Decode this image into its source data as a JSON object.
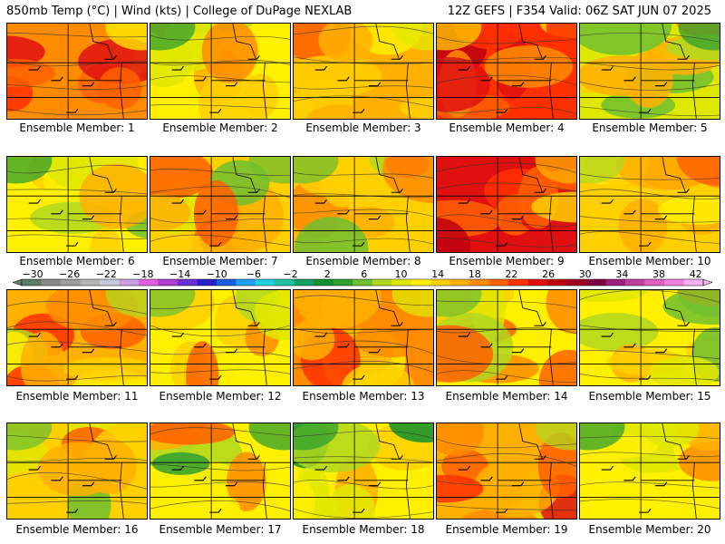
{
  "header": {
    "left_title": "850mb Temp (°C) | Wind (kts) | College of DuPage NEXLAB",
    "right_title": "12Z GEFS | F354 Valid: 06Z SAT JUN 07 2025"
  },
  "members": [
    {
      "caption": "Ensemble Member: 1",
      "warmth": 0.68
    },
    {
      "caption": "Ensemble Member: 2",
      "warmth": 0.4
    },
    {
      "caption": "Ensemble Member: 3",
      "warmth": 0.6
    },
    {
      "caption": "Ensemble Member: 4",
      "warmth": 0.78
    },
    {
      "caption": "Ensemble Member: 5",
      "warmth": 0.38
    },
    {
      "caption": "Ensemble Member: 6",
      "warmth": 0.42
    },
    {
      "caption": "Ensemble Member: 7",
      "warmth": 0.48
    },
    {
      "caption": "Ensemble Member: 8",
      "warmth": 0.5
    },
    {
      "caption": "Ensemble Member: 9",
      "warmth": 0.88
    },
    {
      "caption": "Ensemble Member: 10",
      "warmth": 0.52
    },
    {
      "caption": "Ensemble Member: 11",
      "warmth": 0.58
    },
    {
      "caption": "Ensemble Member: 12",
      "warmth": 0.44
    },
    {
      "caption": "Ensemble Member: 13",
      "warmth": 0.62
    },
    {
      "caption": "Ensemble Member: 14",
      "warmth": 0.46
    },
    {
      "caption": "Ensemble Member: 15",
      "warmth": 0.45
    },
    {
      "caption": "Ensemble Member: 16",
      "warmth": 0.47
    },
    {
      "caption": "Ensemble Member: 17",
      "warmth": 0.43
    },
    {
      "caption": "Ensemble Member: 18",
      "warmth": 0.4
    },
    {
      "caption": "Ensemble Member: 19",
      "warmth": 0.56
    },
    {
      "caption": "Ensemble Member: 20",
      "warmth": 0.42
    }
  ],
  "colorbar": {
    "labels": [
      "−30",
      "−26",
      "−22",
      "−18",
      "−14",
      "−10",
      "−6",
      "−2",
      "2",
      "6",
      "10",
      "14",
      "18",
      "22",
      "26",
      "30",
      "34",
      "38",
      "42"
    ],
    "colors": [
      "#5f7a6a",
      "#8a8a8a",
      "#9e9e9e",
      "#b5b5b5",
      "#c8c8dc",
      "#c9a0dc",
      "#e060e0",
      "#b040d0",
      "#6b2fd6",
      "#2b1fc8",
      "#1a5fe0",
      "#20a0f0",
      "#20d0e0",
      "#20c0a0",
      "#10a060",
      "#109030",
      "#30a030",
      "#70c030",
      "#b0d820",
      "#e0e800",
      "#fff000",
      "#ffd000",
      "#ffb000",
      "#ff8c00",
      "#ff6000",
      "#ff3000",
      "#e01010",
      "#c00010",
      "#a00020",
      "#800040",
      "#a02080",
      "#c040a0",
      "#e060c0",
      "#f080e0",
      "#f8b0f0"
    ]
  }
}
